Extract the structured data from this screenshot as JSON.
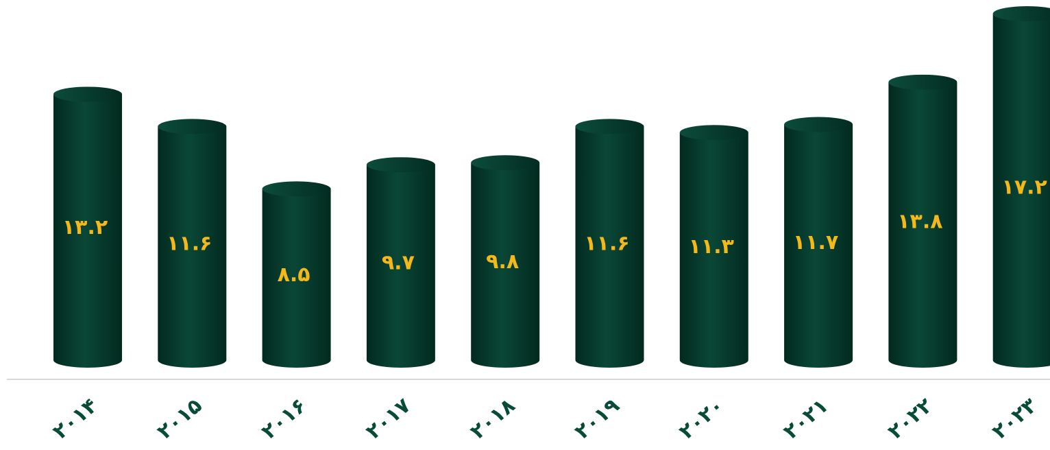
{
  "chart_data": {
    "type": "bar",
    "style": "3d-cylinder",
    "categories": [
      "۲۰۱۴",
      "۲۰۱۵",
      "۲۰۱۶",
      "۲۰۱۷",
      "۲۰۱۸",
      "۲۰۱۹",
      "۲۰۲۰",
      "۲۰۲۱",
      "۲۰۲۲",
      "۲۰۲۳"
    ],
    "values": [
      13.2,
      11.6,
      8.5,
      9.7,
      9.8,
      11.6,
      11.3,
      11.7,
      13.8,
      17.2
    ],
    "value_labels": [
      "۱۳.۲",
      "۱۱.۶",
      "۸.۵",
      "۹.۷",
      "۹.۸",
      "۱۱.۶",
      "۱۱.۳",
      "۱۱.۷",
      "۱۳.۸",
      "۱۷.۲"
    ],
    "title": "",
    "xlabel": "",
    "ylabel": "",
    "ylim": [
      0,
      17.2
    ],
    "grid": false,
    "legend": "none",
    "colors": {
      "bar": "#053d2e",
      "bar_dark": "#022a1f",
      "bar_light": "#0b4a39",
      "value_label": "#f2b81c",
      "tick_label": "#084b38",
      "baseline": "#d9d9d9"
    }
  }
}
